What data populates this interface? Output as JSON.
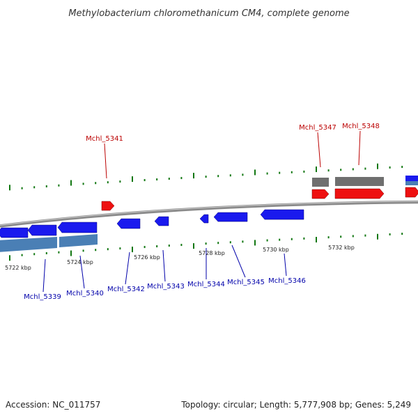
{
  "title": "Methylobacterium chloromethanicum CM4, complete genome",
  "footer": {
    "accession": "Accession: NC_011757",
    "summary": "Topology: circular; Length: 5,777,908 bp; Genes: 5,249"
  },
  "colors": {
    "forward_gene": "#ee1111",
    "reverse_gene": "#1a1aee",
    "forward_label": "#bb0000",
    "reverse_label": "#0000aa",
    "rna_gene": "#6f6f6f",
    "cds_bar": "#4a7fb5",
    "backbone": "#8a8a8a",
    "tick_major": "#117711",
    "tick_minor": "#117711"
  },
  "scale_labels": [
    "5722 kbp",
    "5724 kbp",
    "5726 kbp",
    "5728 kbp",
    "5730 kbp",
    "5732 kbp"
  ],
  "forward_labels": [
    "Mchl_5341",
    "Mchl_5347",
    "Mchl_5348"
  ],
  "reverse_labels": [
    "Mchl_5339",
    "Mchl_5340",
    "Mchl_5342",
    "Mchl_5343",
    "Mchl_5344",
    "Mchl_5345",
    "Mchl_5346"
  ]
}
